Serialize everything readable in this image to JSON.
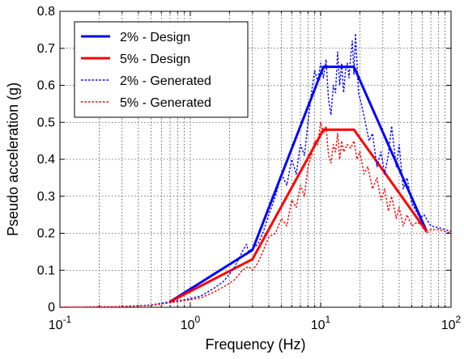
{
  "chart_data": {
    "type": "line",
    "title": "",
    "xlabel": "Frequency (Hz)",
    "ylabel": "Pseudo acceleration (g)",
    "xscale": "log",
    "xlim": [
      0.1,
      100
    ],
    "ylim": [
      0,
      0.8
    ],
    "grid": true,
    "grid_style": "dotted",
    "legend_position": "top-left",
    "x_ticks": [
      {
        "value": 0.1,
        "base": "10",
        "exp": "-1"
      },
      {
        "value": 1,
        "base": "10",
        "exp": "0"
      },
      {
        "value": 10,
        "base": "10",
        "exp": "1"
      },
      {
        "value": 100,
        "base": "10",
        "exp": "2"
      }
    ],
    "y_ticks": [
      {
        "value": 0,
        "label": "0"
      },
      {
        "value": 0.1,
        "label": "0.1"
      },
      {
        "value": 0.2,
        "label": "0.2"
      },
      {
        "value": 0.3,
        "label": "0.3"
      },
      {
        "value": 0.4,
        "label": "0.4"
      },
      {
        "value": 0.5,
        "label": "0.5"
      },
      {
        "value": 0.6,
        "label": "0.6"
      },
      {
        "value": 0.7,
        "label": "0.7"
      },
      {
        "value": 0.8,
        "label": "0.8"
      }
    ],
    "series": [
      {
        "name": "2% - Design",
        "color": "#0000ff",
        "style": "solid",
        "points": [
          [
            0.7,
            0.015
          ],
          [
            3.0,
            0.155
          ],
          [
            10.5,
            0.65
          ],
          [
            18.0,
            0.65
          ],
          [
            65,
            0.205
          ]
        ]
      },
      {
        "name": "5% - Design",
        "color": "#ff0000",
        "style": "solid",
        "points": [
          [
            0.7,
            0.015
          ],
          [
            3.0,
            0.13
          ],
          [
            10.5,
            0.48
          ],
          [
            18.0,
            0.48
          ],
          [
            65,
            0.205
          ]
        ]
      },
      {
        "name": "2% - Generated",
        "color": "#0000ff",
        "style": "dotted",
        "points": [
          [
            0.1,
            0.0
          ],
          [
            0.3,
            0.002
          ],
          [
            0.5,
            0.006
          ],
          [
            0.7,
            0.015
          ],
          [
            0.9,
            0.02
          ],
          [
            1.2,
            0.03
          ],
          [
            1.5,
            0.05
          ],
          [
            1.8,
            0.07
          ],
          [
            2.0,
            0.09
          ],
          [
            2.2,
            0.11
          ],
          [
            2.5,
            0.15
          ],
          [
            2.7,
            0.17
          ],
          [
            2.8,
            0.15
          ],
          [
            3.0,
            0.16
          ],
          [
            3.3,
            0.17
          ],
          [
            3.6,
            0.2
          ],
          [
            4.0,
            0.25
          ],
          [
            4.5,
            0.3
          ],
          [
            5.0,
            0.36
          ],
          [
            5.5,
            0.33
          ],
          [
            6.0,
            0.4
          ],
          [
            6.5,
            0.36
          ],
          [
            7.0,
            0.44
          ],
          [
            7.5,
            0.41
          ],
          [
            8.0,
            0.5
          ],
          [
            8.5,
            0.58
          ],
          [
            9.0,
            0.64
          ],
          [
            9.5,
            0.61
          ],
          [
            10.0,
            0.66
          ],
          [
            10.5,
            0.62
          ],
          [
            11.0,
            0.67
          ],
          [
            11.5,
            0.56
          ],
          [
            12.0,
            0.52
          ],
          [
            12.5,
            0.6
          ],
          [
            13.0,
            0.58
          ],
          [
            13.5,
            0.69
          ],
          [
            14.0,
            0.6
          ],
          [
            14.5,
            0.66
          ],
          [
            15.0,
            0.58
          ],
          [
            15.5,
            0.64
          ],
          [
            16.0,
            0.66
          ],
          [
            16.5,
            0.62
          ],
          [
            17.0,
            0.68
          ],
          [
            17.5,
            0.72
          ],
          [
            18.0,
            0.63
          ],
          [
            18.5,
            0.74
          ],
          [
            19.5,
            0.58
          ],
          [
            20.5,
            0.55
          ],
          [
            22.0,
            0.5
          ],
          [
            23.5,
            0.45
          ],
          [
            25.0,
            0.47
          ],
          [
            27.0,
            0.38
          ],
          [
            29.0,
            0.42
          ],
          [
            31.0,
            0.36
          ],
          [
            33.0,
            0.41
          ],
          [
            35.0,
            0.49
          ],
          [
            38.0,
            0.38
          ],
          [
            40.0,
            0.44
          ],
          [
            43.0,
            0.32
          ],
          [
            46.0,
            0.35
          ],
          [
            50.0,
            0.28
          ],
          [
            54.0,
            0.26
          ],
          [
            58.0,
            0.24
          ],
          [
            62.0,
            0.25
          ],
          [
            70.0,
            0.22
          ],
          [
            80.0,
            0.215
          ],
          [
            90.0,
            0.21
          ],
          [
            100.0,
            0.205
          ]
        ]
      },
      {
        "name": "5% - Generated",
        "color": "#ff0000",
        "style": "dotted",
        "points": [
          [
            0.1,
            0.0
          ],
          [
            0.3,
            0.002
          ],
          [
            0.5,
            0.005
          ],
          [
            0.7,
            0.012
          ],
          [
            0.9,
            0.018
          ],
          [
            1.2,
            0.025
          ],
          [
            1.5,
            0.04
          ],
          [
            1.8,
            0.055
          ],
          [
            2.0,
            0.065
          ],
          [
            2.2,
            0.075
          ],
          [
            2.5,
            0.1
          ],
          [
            2.8,
            0.11
          ],
          [
            3.0,
            0.1
          ],
          [
            3.3,
            0.12
          ],
          [
            3.6,
            0.15
          ],
          [
            4.0,
            0.19
          ],
          [
            4.5,
            0.2
          ],
          [
            5.0,
            0.24
          ],
          [
            5.5,
            0.22
          ],
          [
            6.0,
            0.29
          ],
          [
            6.5,
            0.27
          ],
          [
            7.0,
            0.33
          ],
          [
            7.5,
            0.3
          ],
          [
            8.0,
            0.38
          ],
          [
            8.5,
            0.41
          ],
          [
            9.0,
            0.45
          ],
          [
            9.5,
            0.44
          ],
          [
            10.0,
            0.5
          ],
          [
            10.5,
            0.47
          ],
          [
            11.0,
            0.49
          ],
          [
            11.5,
            0.41
          ],
          [
            12.0,
            0.39
          ],
          [
            12.5,
            0.44
          ],
          [
            13.0,
            0.42
          ],
          [
            13.5,
            0.47
          ],
          [
            14.0,
            0.4
          ],
          [
            14.5,
            0.45
          ],
          [
            15.0,
            0.42
          ],
          [
            16.0,
            0.44
          ],
          [
            17.0,
            0.43
          ],
          [
            18.0,
            0.45
          ],
          [
            19.0,
            0.4
          ],
          [
            20.0,
            0.42
          ],
          [
            21.5,
            0.36
          ],
          [
            23.0,
            0.38
          ],
          [
            25.0,
            0.32
          ],
          [
            27.0,
            0.35
          ],
          [
            29.0,
            0.29
          ],
          [
            31.0,
            0.32
          ],
          [
            33.0,
            0.26
          ],
          [
            35.0,
            0.3
          ],
          [
            38.0,
            0.24
          ],
          [
            40.0,
            0.27
          ],
          [
            43.0,
            0.22
          ],
          [
            46.0,
            0.25
          ],
          [
            50.0,
            0.22
          ],
          [
            55.0,
            0.23
          ],
          [
            60.0,
            0.22
          ],
          [
            65.0,
            0.2
          ],
          [
            70.0,
            0.21
          ],
          [
            80.0,
            0.21
          ],
          [
            90.0,
            0.205
          ],
          [
            100.0,
            0.2
          ]
        ]
      }
    ]
  }
}
